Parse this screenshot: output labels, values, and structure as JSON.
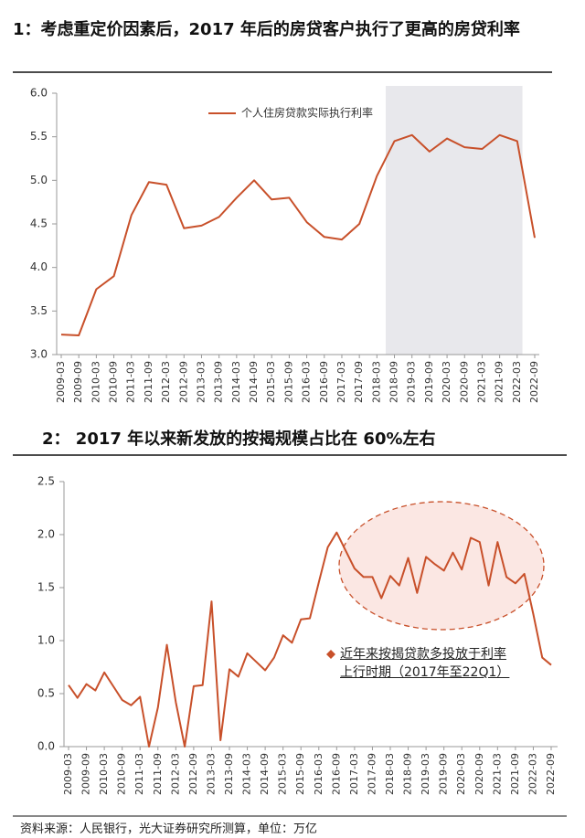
{
  "chart_data": [
    {
      "type": "line",
      "title": "1：考虑重定价因素后，2017 年后的房贷客户执行了更高的房贷利率",
      "categories": [
        "2009-03",
        "2009-09",
        "2010-03",
        "2010-09",
        "2011-03",
        "2011-09",
        "2012-03",
        "2012-09",
        "2013-03",
        "2013-09",
        "2014-03",
        "2014-09",
        "2015-03",
        "2015-09",
        "2016-03",
        "2016-09",
        "2017-03",
        "2017-09",
        "2018-03",
        "2018-09",
        "2019-03",
        "2019-09",
        "2020-03",
        "2020-09",
        "2021-03",
        "2021-09",
        "2022-03",
        "2022-09"
      ],
      "series": [
        {
          "name": "个人住房贷款实际执行利率",
          "color": "#c8502a",
          "values": [
            3.23,
            3.22,
            3.75,
            3.9,
            4.6,
            4.98,
            4.95,
            4.45,
            4.48,
            4.58,
            4.8,
            5.0,
            4.78,
            4.8,
            4.52,
            4.35,
            4.32,
            4.5,
            5.05,
            5.45,
            5.52,
            5.33,
            5.48,
            5.38,
            5.36,
            5.52,
            5.45,
            4.34
          ]
        }
      ],
      "ylim": [
        3.0,
        6.0
      ],
      "yticks": [
        {
          "value": 3.0,
          "label": "3.0"
        },
        3.5,
        {
          "value": 4.0,
          "label": "4.0"
        },
        4.5,
        {
          "value": 5.0,
          "label": "5.0"
        },
        5.5,
        {
          "value": 6.0,
          "label": "6.0"
        }
      ],
      "grid": false
    },
    {
      "type": "line",
      "title": "2：  2017 年以来新发放的按揭规模占比在 60%左右",
      "categories": [
        "2009-03",
        null,
        "2009-09",
        null,
        "2010-03",
        null,
        "2010-09",
        null,
        "2011-03",
        null,
        "2011-09",
        null,
        "2012-03",
        null,
        "2012-09",
        null,
        "2013-03",
        null,
        "2013-09",
        null,
        "2014-03",
        null,
        "2014-09",
        null,
        "2015-03",
        null,
        "2015-09",
        null,
        "2016-03",
        null,
        "2016-09",
        null,
        "2017-03",
        null,
        "2017-09",
        null,
        "2018-03",
        null,
        "2018-09",
        null,
        "2019-03",
        null,
        "2019-09",
        null,
        "2020-03",
        null,
        "2020-09",
        null,
        "2021-03",
        null,
        "2021-09",
        null,
        "2022-03",
        null,
        "2022-09"
      ],
      "series": [
        {
          "name": "近年来按揭贷款多投放于利率上行时期（2017年至22Q1）",
          "color": "#c8502a",
          "values": [
            0.58,
            0.46,
            0.59,
            0.53,
            0.7,
            0.57,
            0.44,
            0.39,
            0.47,
            0.0,
            0.37,
            0.96,
            0.42,
            0.0,
            0.57,
            0.58,
            1.37,
            0.06,
            0.73,
            0.66,
            0.88,
            0.8,
            0.72,
            0.84,
            1.05,
            0.98,
            1.2,
            1.21,
            1.55,
            1.88,
            2.02,
            1.85,
            1.68,
            1.6,
            1.6,
            1.4,
            1.61,
            1.52,
            1.78,
            1.45,
            1.79,
            1.72,
            1.66,
            1.83,
            1.67,
            1.97,
            1.93,
            1.52,
            1.93,
            1.6,
            1.54,
            1.63,
            1.25,
            0.84,
            0.77
          ]
        }
      ],
      "ylim": [
        0.0,
        2.5
      ],
      "yticks": [
        {
          "value": 0.0,
          "label": "0.0"
        },
        0.5,
        {
          "value": 1.0,
          "label": "1.0"
        },
        1.5,
        {
          "value": 2.0,
          "label": "2.0"
        },
        2.5
      ],
      "grid": false
    }
  ],
  "source": "资料来源：人民银行，光大证券研究所测算，单位：万亿"
}
